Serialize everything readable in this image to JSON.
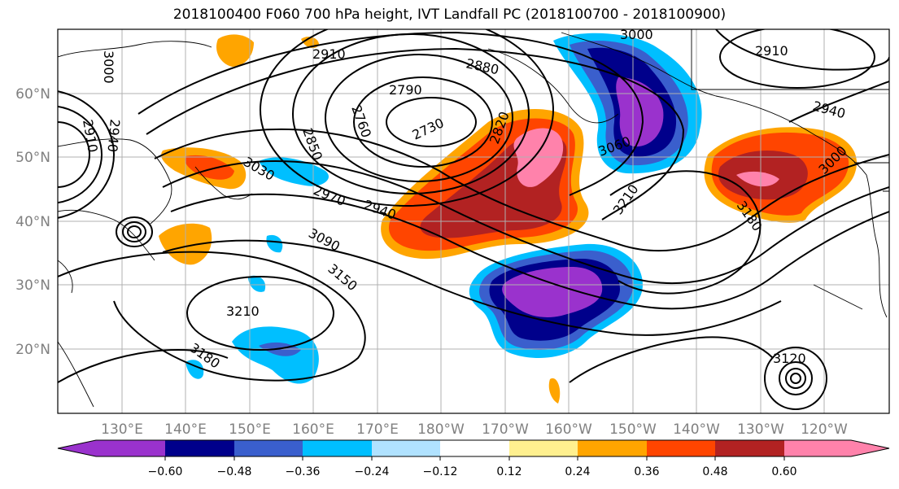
{
  "title": "2018100400 F060 700 hPa height, IVT Landfall PC (2018100700 - 2018100900)",
  "map": {
    "lon_ticks": [
      "130°E",
      "140°E",
      "150°E",
      "160°E",
      "170°E",
      "180°W",
      "170°W",
      "160°W",
      "150°W",
      "140°W",
      "130°W",
      "120°W"
    ],
    "lat_ticks": [
      "60°N",
      "50°N",
      "40°N",
      "30°N",
      "20°N"
    ],
    "contour_labels": [
      {
        "text": "3000"
      },
      {
        "text": "2910"
      },
      {
        "text": "2880"
      },
      {
        "text": "2790"
      },
      {
        "text": "2760"
      },
      {
        "text": "2730"
      },
      {
        "text": "2820"
      },
      {
        "text": "2850"
      },
      {
        "text": "3030"
      },
      {
        "text": "2970"
      },
      {
        "text": "2940"
      },
      {
        "text": "3090"
      },
      {
        "text": "3150"
      },
      {
        "text": "3210"
      },
      {
        "text": "3180"
      },
      {
        "text": "3060"
      },
      {
        "text": "3210"
      },
      {
        "text": "3000"
      },
      {
        "text": "2910"
      },
      {
        "text": "2940"
      },
      {
        "text": "3180"
      },
      {
        "text": "3000"
      },
      {
        "text": "3120"
      },
      {
        "text": "2910"
      },
      {
        "text": "2940"
      }
    ]
  },
  "colorbar": {
    "tick_labels": [
      "−0.60",
      "−0.48",
      "−0.36",
      "−0.24",
      "−0.12",
      "0.12",
      "0.24",
      "0.36",
      "0.48",
      "0.60"
    ],
    "colors": [
      "#9a32cd",
      "#00008b",
      "#3a5fcd",
      "#00bfff",
      "#b0e2ff",
      "#ffffff",
      "#fff08f",
      "#ffa500",
      "#ff4500",
      "#b22222",
      "#ff82ab"
    ]
  }
}
